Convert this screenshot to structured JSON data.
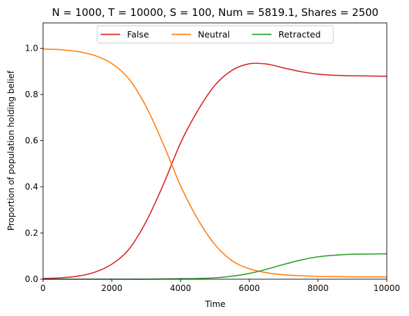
{
  "chart_data": {
    "type": "line",
    "title": "N = 1000, T = 10000, S = 100, Num = 5819.1, Shares = 2500",
    "xlabel": "Time",
    "ylabel": "Proportion of population holding belief",
    "xlim": [
      0,
      10000
    ],
    "ylim": [
      0,
      1.11
    ],
    "xticks": [
      0,
      2000,
      4000,
      6000,
      8000,
      10000
    ],
    "yticks": [
      0.0,
      0.2,
      0.4,
      0.6,
      0.8,
      1.0
    ],
    "xtick_labels": [
      "0",
      "2000",
      "4000",
      "6000",
      "8000",
      "10000"
    ],
    "ytick_labels": [
      "0.0",
      "0.2",
      "0.4",
      "0.6",
      "0.8",
      "1.0"
    ],
    "grid": false,
    "legend_placement": "upper-center",
    "x": [
      0,
      500,
      1000,
      1500,
      2000,
      2500,
      3000,
      3500,
      4000,
      4500,
      5000,
      5500,
      6000,
      6500,
      7000,
      7500,
      8000,
      8500,
      9000,
      9500,
      10000
    ],
    "series": [
      {
        "name": "False",
        "color": "#d62728",
        "values": [
          0.003,
          0.006,
          0.013,
          0.03,
          0.065,
          0.13,
          0.25,
          0.41,
          0.59,
          0.73,
          0.84,
          0.905,
          0.933,
          0.932,
          0.915,
          0.899,
          0.888,
          0.883,
          0.881,
          0.88,
          0.879
        ]
      },
      {
        "name": "Neutral",
        "color": "#ff7f0e",
        "values": [
          0.997,
          0.994,
          0.986,
          0.969,
          0.934,
          0.867,
          0.747,
          0.585,
          0.405,
          0.26,
          0.15,
          0.08,
          0.045,
          0.028,
          0.019,
          0.015,
          0.012,
          0.011,
          0.01,
          0.01,
          0.01
        ]
      },
      {
        "name": "Retracted",
        "color": "#2ca02c",
        "values": [
          0,
          0,
          0,
          0,
          0,
          0,
          0,
          0.001,
          0.002,
          0.003,
          0.006,
          0.013,
          0.025,
          0.043,
          0.064,
          0.083,
          0.097,
          0.104,
          0.108,
          0.109,
          0.11
        ]
      }
    ]
  }
}
